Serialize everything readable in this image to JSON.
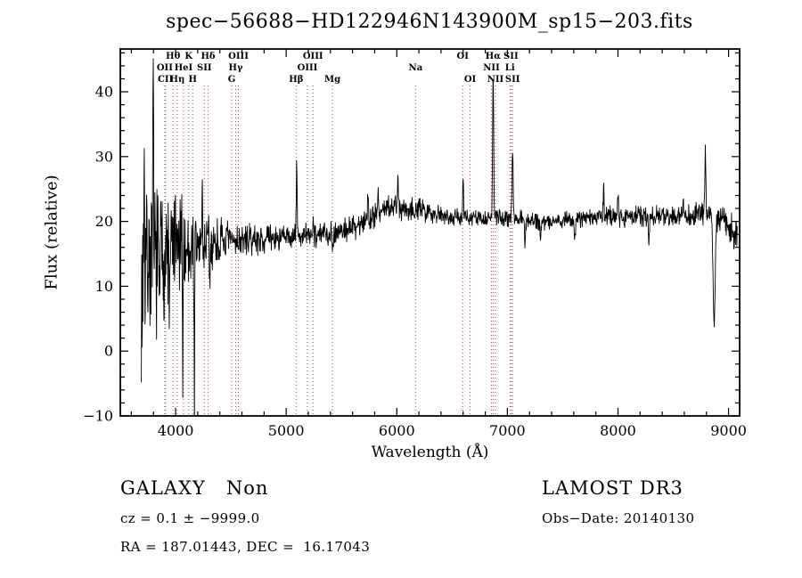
{
  "title": "spec−56688−HD122946N143900M_sp15−203.fits",
  "footer": {
    "class_label": "GALAXY   Non",
    "survey": "LAMOST DR3",
    "cz_line": "cz = 0.1 ± −9999.0",
    "obs_date": "Obs−Date: 20140130",
    "ra_dec": "RA = 187.01443, DEC =  16.17043"
  },
  "chart_data": {
    "type": "line",
    "title": "spec−56688−HD122946N143900M_sp15−203.fits",
    "xlabel": "Wavelength (Å)",
    "ylabel": "Flux (relative)",
    "xlim": [
      3500,
      9100
    ],
    "ylim": [
      -10,
      46.6
    ],
    "xticks": [
      4000,
      5000,
      6000,
      7000,
      8000,
      9000
    ],
    "xtick_labels": [
      "4000",
      "5000",
      "6000",
      "7000",
      "8000",
      "9000"
    ],
    "yticks": [
      -10,
      0,
      10,
      20,
      30,
      40
    ],
    "ytick_labels": [
      "−10",
      "0",
      "10",
      "20",
      "30",
      "40"
    ],
    "x_minor_step": 200,
    "y_minor_step": 2,
    "grid": false,
    "legend": "none",
    "line_color": "#000000",
    "marker_color": "#b24b4b",
    "line_markers": [
      {
        "label": "OII",
        "wl": 3902,
        "row": 2
      },
      {
        "label": "CII",
        "wl": 3908,
        "row": 3
      },
      {
        "label": "Hθ",
        "wl": 3977,
        "row": 1
      },
      {
        "label": "Hη",
        "wl": 4015,
        "row": 3
      },
      {
        "label": "HeI",
        "wl": 4072,
        "row": 2
      },
      {
        "label": "K",
        "wl": 4118,
        "row": 1
      },
      {
        "label": "H",
        "wl": 4154,
        "row": 3
      },
      {
        "label": "SII",
        "wl": 4260,
        "row": 2
      },
      {
        "label": "Hδ",
        "wl": 4294,
        "row": 1
      },
      {
        "label": "G",
        "wl": 4507,
        "row": 3
      },
      {
        "label": "Hγ",
        "wl": 4544,
        "row": 2
      },
      {
        "label": "OIII",
        "wl": 4568,
        "row": 1
      },
      {
        "label": "Hβ",
        "wl": 5090,
        "row": 3
      },
      {
        "label": "OIII",
        "wl": 5192,
        "row": 2
      },
      {
        "label": "OIII",
        "wl": 5242,
        "row": 1
      },
      {
        "label": "Mg",
        "wl": 5418,
        "row": 3
      },
      {
        "label": "Na",
        "wl": 6170,
        "row": 2
      },
      {
        "label": "OI",
        "wl": 6596,
        "row": 1
      },
      {
        "label": "OI",
        "wl": 6663,
        "row": 3
      },
      {
        "label": "NII",
        "wl": 6856,
        "row": 2
      },
      {
        "label": "Hα",
        "wl": 6871,
        "row": 1
      },
      {
        "label": "NII",
        "wl": 6892,
        "row": 3
      },
      {
        "label": "Li",
        "wl": 7023,
        "row": 2
      },
      {
        "label": "SII",
        "wl": 7032,
        "row": 1
      },
      {
        "label": "SII",
        "wl": 7047,
        "row": 3
      }
    ],
    "spectrum": {
      "x_start": 3690,
      "x_end": 9080,
      "x_step": 3,
      "seed": 7,
      "continuum": [
        [
          3690,
          14
        ],
        [
          3800,
          14.5
        ],
        [
          3900,
          15
        ],
        [
          4000,
          15.5
        ],
        [
          4150,
          16
        ],
        [
          4300,
          16.5
        ],
        [
          4500,
          17
        ],
        [
          4800,
          17.3
        ],
        [
          5100,
          17.6
        ],
        [
          5400,
          18.2
        ],
        [
          5600,
          19
        ],
        [
          5800,
          21
        ],
        [
          5950,
          22.3
        ],
        [
          6150,
          22
        ],
        [
          6350,
          21.3
        ],
        [
          6550,
          20.6
        ],
        [
          6800,
          20.4
        ],
        [
          7050,
          20.6
        ],
        [
          7300,
          20
        ],
        [
          7600,
          20.3
        ],
        [
          7900,
          20.8
        ],
        [
          8200,
          20.8
        ],
        [
          8500,
          20.8
        ],
        [
          8800,
          21
        ],
        [
          8950,
          20.5
        ],
        [
          9000,
          19
        ],
        [
          9080,
          18
        ]
      ],
      "noise_envelope": [
        [
          3690,
          12
        ],
        [
          3780,
          10
        ],
        [
          3880,
          9
        ],
        [
          3980,
          8
        ],
        [
          4100,
          6.5
        ],
        [
          4250,
          5
        ],
        [
          4400,
          3
        ],
        [
          4600,
          2
        ],
        [
          5000,
          1.7
        ],
        [
          5500,
          1.6
        ],
        [
          5900,
          1.9
        ],
        [
          6300,
          1.4
        ],
        [
          6700,
          1.1
        ],
        [
          7100,
          1.1
        ],
        [
          7500,
          1.2
        ],
        [
          8000,
          1.3
        ],
        [
          8500,
          1.4
        ],
        [
          8800,
          1.7
        ],
        [
          9080,
          2.5
        ]
      ],
      "features": [
        [
          3695,
          -13,
          3
        ],
        [
          3715,
          16,
          3
        ],
        [
          3798,
          23,
          3
        ],
        [
          3850,
          -10,
          3
        ],
        [
          3945,
          -12,
          3
        ],
        [
          4065,
          -15,
          3
        ],
        [
          4170,
          -24,
          3
        ],
        [
          4240,
          8,
          3
        ],
        [
          4310,
          -7,
          3
        ],
        [
          5095,
          12,
          4
        ],
        [
          5245,
          3,
          4
        ],
        [
          5420,
          -2.5,
          4
        ],
        [
          5740,
          4.5,
          4
        ],
        [
          5830,
          4,
          4
        ],
        [
          6010,
          4,
          4
        ],
        [
          6600,
          6,
          4
        ],
        [
          6871,
          22,
          5
        ],
        [
          7047,
          11,
          5
        ],
        [
          7160,
          -4,
          4
        ],
        [
          7300,
          -3,
          4
        ],
        [
          7610,
          -3,
          5
        ],
        [
          7870,
          4.5,
          4
        ],
        [
          8000,
          4,
          4
        ],
        [
          8280,
          -4,
          4
        ],
        [
          8590,
          4,
          4
        ],
        [
          8790,
          10,
          5
        ],
        [
          8870,
          -17,
          9
        ]
      ]
    }
  }
}
